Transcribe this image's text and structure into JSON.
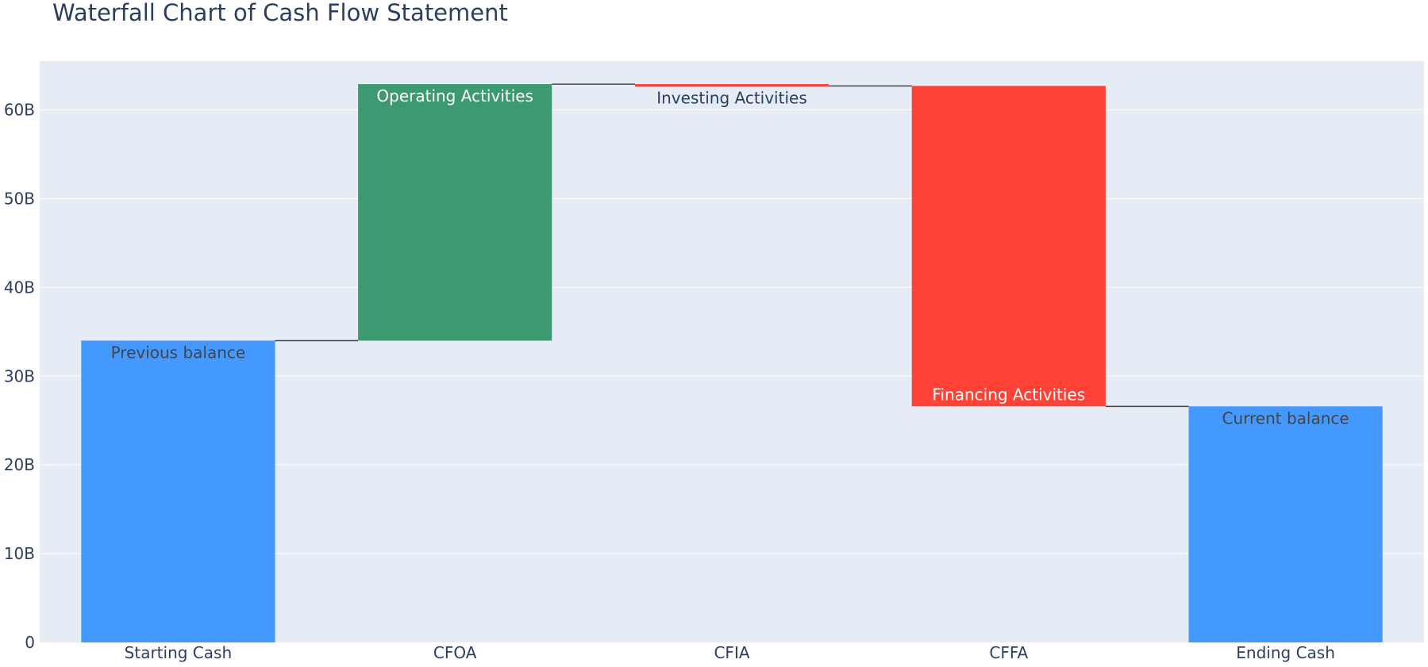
{
  "colors": {
    "increasing": "#3d9970",
    "decreasing": "#ff4136",
    "totals": "#4499ff",
    "plot_background": "#e5ecf6",
    "gridline": "#ffffff",
    "connector": "#444444",
    "text": "#2a3f5f"
  },
  "chart_data": {
    "type": "waterfall",
    "title": "Waterfall Chart of Cash Flow Statement",
    "xlabel": "",
    "ylabel": "",
    "ylim": [
      0,
      65.5
    ],
    "y_unit": "billions",
    "y_ticks": [
      0,
      10,
      20,
      30,
      40,
      50,
      60
    ],
    "y_tick_labels": [
      "0",
      "10B",
      "20B",
      "30B",
      "40B",
      "50B",
      "60B"
    ],
    "grid": true,
    "categories": [
      "Starting Cash",
      "CFOA",
      "CFIA",
      "CFFA",
      "Ending Cash"
    ],
    "measures": [
      "absolute",
      "relative",
      "relative",
      "relative",
      "total"
    ],
    "values": [
      34.0,
      28.9,
      -0.2,
      -36.1,
      26.6
    ],
    "text": [
      "Previous balance",
      "Operating Activities",
      "Investing Activities",
      "Financing Activities",
      "Current balance"
    ]
  }
}
